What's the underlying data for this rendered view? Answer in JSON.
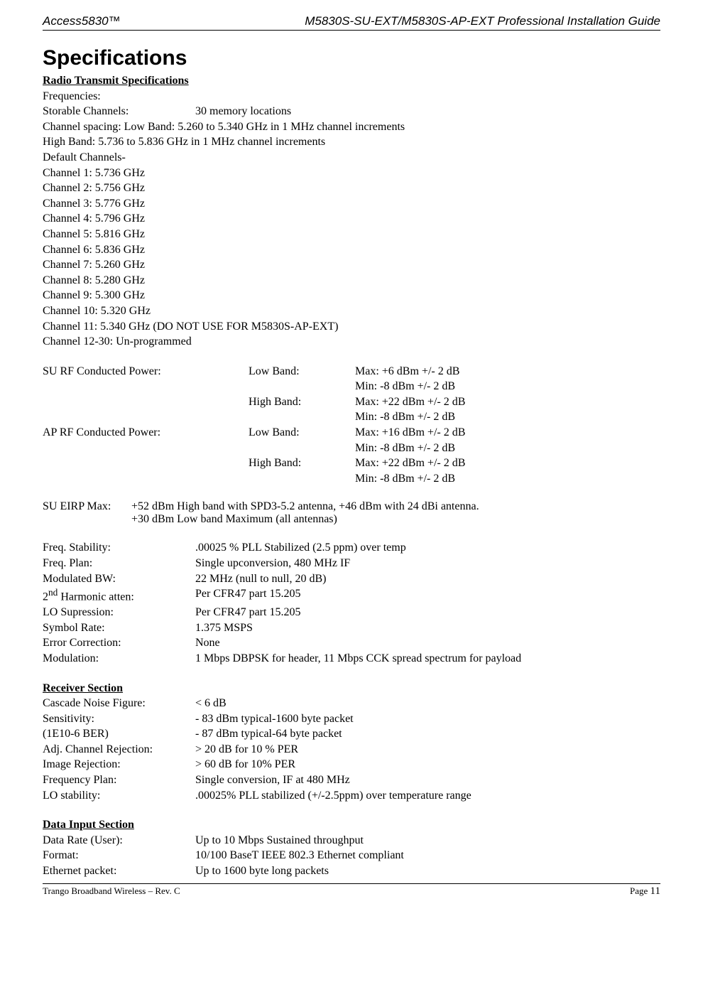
{
  "header": {
    "left": "Access5830™",
    "right": "M5830S-SU-EXT/M5830S-AP-EXT Professional Installation Guide"
  },
  "title": "Specifications",
  "radio": {
    "heading": "Radio Transmit Specifications",
    "freq_label": "Frequencies:",
    "storable": {
      "label": "Storable Channels:",
      "value": "30 memory locations"
    },
    "chan_spacing": "Channel spacing: Low Band: 5.260 to 5.340 GHz in 1 MHz channel increments",
    "high_band": "High Band: 5.736 to 5.836 GHz in 1 MHz channel increments",
    "default_label": "Default Channels-",
    "channels": [
      "Channel 1: 5.736 GHz",
      "Channel 2: 5.756 GHz",
      "Channel 3: 5.776 GHz",
      "Channel 4: 5.796 GHz",
      "Channel 5: 5.816 GHz",
      "Channel 6: 5.836 GHz",
      "Channel 7: 5.260 GHz",
      "Channel 8: 5.280 GHz",
      "Channel 9: 5.300 GHz",
      "Channel 10: 5.320 GHz",
      "Channel 11: 5.340 GHz (DO NOT USE FOR M5830S-AP-EXT)",
      "Channel 12-30: Un-programmed"
    ]
  },
  "rf": {
    "rows": [
      {
        "c1": "SU RF Conducted Power:",
        "c2": "Low Band:",
        "c3": "Max: +6 dBm +/- 2 dB"
      },
      {
        "c1": "",
        "c2": "",
        "c3": "Min:  -8 dBm +/- 2 dB"
      },
      {
        "c1": "",
        "c2": "High Band:",
        "c3": "Max: +22 dBm +/- 2 dB"
      },
      {
        "c1": "",
        "c2": "",
        "c3": "Min:  -8 dBm +/- 2 dB"
      },
      {
        "c1": "AP RF Conducted Power:",
        "c2": "Low Band:",
        "c3": "Max: +16 dBm +/- 2 dB"
      },
      {
        "c1": "",
        "c2": "",
        "c3": "Min:  -8 dBm +/- 2 dB"
      },
      {
        "c1": "",
        "c2": "High Band:",
        "c3": "Max: +22 dBm +/- 2 dB"
      },
      {
        "c1": "",
        "c2": "",
        "c3": "Min:  -8 dBm +/- 2 dB"
      }
    ]
  },
  "eirp": {
    "label": "SU EIRP Max:",
    "line1": "+52 dBm High band with  SPD3-5.2 antenna, +46 dBm with 24 dBi antenna.",
    "line2": "+30 dBm Low band Maximum (all antennas)"
  },
  "specs": [
    {
      "label": "Freq. Stability:",
      "value": ".00025 % PLL Stabilized (2.5 ppm) over temp"
    },
    {
      "label": "Freq. Plan:",
      "value": "Single upconversion, 480 MHz IF"
    },
    {
      "label": "Modulated BW:",
      "value": "22 MHz (null to null, 20 dB)"
    },
    {
      "label": "__2ND__",
      "value": "Per CFR47 part 15.205"
    },
    {
      "label": "LO Supression:",
      "value": "Per CFR47 part 15.205"
    },
    {
      "label": "Symbol Rate:",
      "value": "1.375 MSPS"
    },
    {
      "label": "Error Correction:",
      "value": "None"
    },
    {
      "label": "Modulation:",
      "value": "1 Mbps DBPSK for header, 11 Mbps CCK spread spectrum for payload"
    }
  ],
  "second_harmonic_label_pre": "2",
  "second_harmonic_label_sup": "nd",
  "second_harmonic_label_post": " Harmonic atten:",
  "receiver": {
    "heading": "Receiver Section",
    "rows": [
      {
        "label": "Cascade Noise Figure:",
        "value": "< 6 dB"
      },
      {
        "label": "Sensitivity:",
        "value": "- 83 dBm typical-1600 byte packet"
      },
      {
        "label": "(1E10-6 BER)",
        "value": "- 87 dBm typical-64 byte packet"
      },
      {
        "label": "Adj. Channel Rejection:",
        "value": "> 20 dB for 10 % PER"
      },
      {
        "label": "Image Rejection:",
        "value": "> 60 dB for 10% PER"
      },
      {
        "label": "Frequency Plan:",
        "value": "Single conversion, IF at 480 MHz"
      },
      {
        "label": "LO stability:",
        "value": ".00025% PLL stabilized (+/-2.5ppm) over temperature range"
      }
    ]
  },
  "datainput": {
    "heading": "Data Input Section",
    "rows": [
      {
        "label": "Data Rate (User):",
        "value": "Up to 10 Mbps Sustained throughput"
      },
      {
        "label": "Format:",
        "value": "10/100 BaseT IEEE 802.3 Ethernet compliant"
      },
      {
        "label": "Ethernet packet:",
        "value": "Up to 1600 byte long packets"
      }
    ]
  },
  "footer": {
    "left": "Trango Broadband Wireless – Rev. C",
    "right_label": "Page ",
    "right_num": "11"
  }
}
